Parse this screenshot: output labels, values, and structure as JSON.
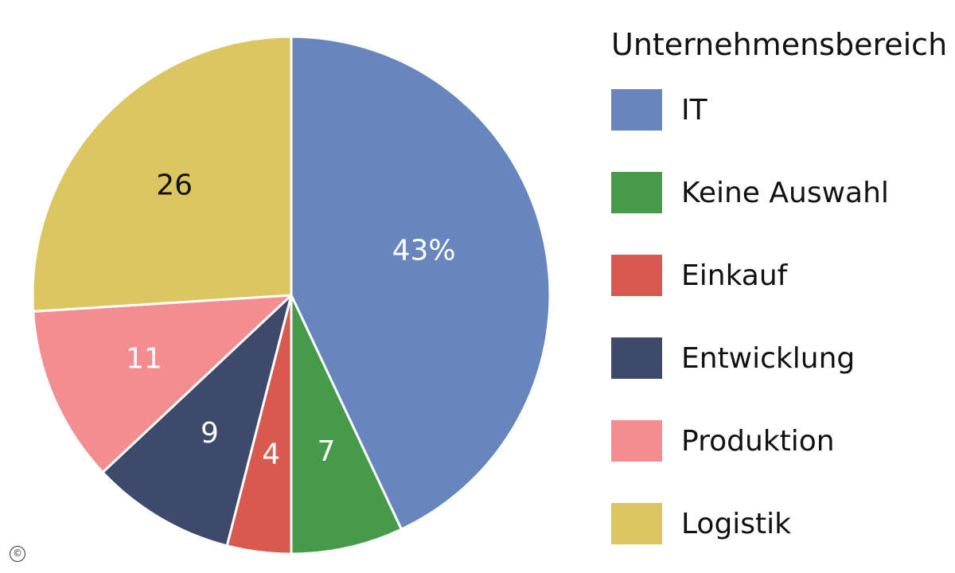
{
  "chart_data": {
    "type": "pie",
    "legend_title": "Unternehmensbereich",
    "legend_position": "right",
    "slices": [
      {
        "name": "IT",
        "value": 43,
        "label": "43%",
        "color": "#6786bd",
        "label_color": "#ffffff"
      },
      {
        "name": "Keine Auswahl",
        "value": 7,
        "label": "7",
        "color": "#479a49",
        "label_color": "#ffffff"
      },
      {
        "name": "Einkauf",
        "value": 4,
        "label": "4",
        "color": "#d8594e",
        "label_color": "#ffffff"
      },
      {
        "name": "Entwicklung",
        "value": 9,
        "label": "9",
        "color": "#3e4a6b",
        "label_color": "#ffffff"
      },
      {
        "name": "Produktion",
        "value": 11,
        "label": "11",
        "color": "#f28d92",
        "label_color": "#ffffff"
      },
      {
        "name": "Logistik",
        "value": 26,
        "label": "26",
        "color": "#dbc65f",
        "label_color": "#111111"
      }
    ]
  },
  "copyright_symbol": "©"
}
